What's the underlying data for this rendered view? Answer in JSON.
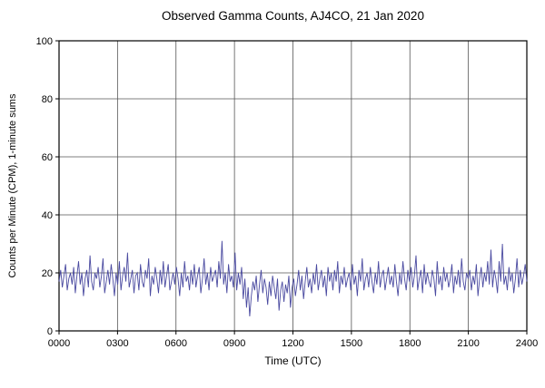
{
  "title": "Observed Gamma Counts, AJ4CO, 21 Jan 2020",
  "chart_data": {
    "type": "line",
    "title": "Observed Gamma Counts, AJ4CO, 21 Jan 2020",
    "xlabel": "Time (UTC)",
    "ylabel": "Counts per Minute (CPM), 1-minute sums",
    "x_ticks": [
      "0000",
      "0300",
      "0600",
      "0900",
      "1200",
      "1500",
      "1800",
      "2100",
      "2400"
    ],
    "y_ticks": [
      0,
      20,
      40,
      60,
      80,
      100
    ],
    "xlim": [
      0,
      1440
    ],
    "ylim": [
      0,
      100
    ],
    "grid": true,
    "legend": "none",
    "line_color": "#4a4aa0",
    "grid_color": "#555555",
    "axis_color": "#000000",
    "background_color": "#ffffff",
    "sample_interval_minutes": 5,
    "values": [
      17,
      21,
      15,
      19,
      23,
      14,
      18,
      20,
      16,
      22,
      13,
      19,
      24,
      16,
      20,
      12,
      18,
      21,
      15,
      26,
      17,
      14,
      20,
      18,
      22,
      15,
      19,
      25,
      13,
      17,
      21,
      16,
      23,
      18,
      12,
      20,
      16,
      24,
      14,
      19,
      22,
      17,
      27,
      15,
      18,
      21,
      13,
      19,
      20,
      14,
      23,
      17,
      15,
      21,
      18,
      25,
      12,
      19,
      16,
      22,
      18,
      13,
      21,
      16,
      24,
      15,
      19,
      23,
      14,
      17,
      20,
      16,
      22,
      18,
      12,
      20,
      15,
      24,
      17,
      19,
      14,
      21,
      16,
      23,
      15,
      19,
      22,
      13,
      18,
      25,
      16,
      20,
      14,
      22,
      17,
      19,
      21,
      15,
      24,
      18,
      31,
      16,
      20,
      13,
      23,
      17,
      19,
      15,
      27,
      14,
      20,
      16,
      22,
      11,
      18,
      8,
      15,
      5,
      12,
      17,
      14,
      19,
      10,
      16,
      21,
      13,
      18,
      15,
      9,
      17,
      12,
      19,
      15,
      11,
      18,
      7,
      14,
      17,
      10,
      16,
      13,
      19,
      8,
      15,
      18,
      12,
      16,
      21,
      14,
      19,
      11,
      17,
      22,
      15,
      18,
      13,
      20,
      16,
      23,
      14,
      18,
      21,
      15,
      19,
      12,
      22,
      17,
      20,
      14,
      21,
      17,
      24,
      13,
      19,
      16,
      22,
      15,
      18,
      20,
      14,
      23,
      16,
      19,
      12,
      21,
      17,
      25,
      14,
      18,
      20,
      15,
      22,
      17,
      13,
      20,
      16,
      24,
      15,
      19,
      21,
      14,
      18,
      22,
      16,
      19,
      15,
      23,
      17,
      12,
      20,
      16,
      24,
      18,
      14,
      21,
      17,
      22,
      15,
      19,
      26,
      14,
      18,
      21,
      13,
      23,
      16,
      20,
      17,
      15,
      21,
      18,
      12,
      24,
      16,
      19,
      14,
      22,
      17,
      20,
      15,
      18,
      23,
      13,
      19,
      16,
      21,
      15,
      25,
      17,
      14,
      20,
      18,
      21,
      14,
      19,
      16,
      23,
      12,
      18,
      22,
      15,
      20,
      17,
      24,
      16,
      28,
      15,
      21,
      18,
      13,
      24,
      17,
      30,
      16,
      19,
      14,
      22,
      17,
      20,
      13,
      18,
      25,
      15,
      21,
      16,
      19,
      23,
      17
    ]
  }
}
